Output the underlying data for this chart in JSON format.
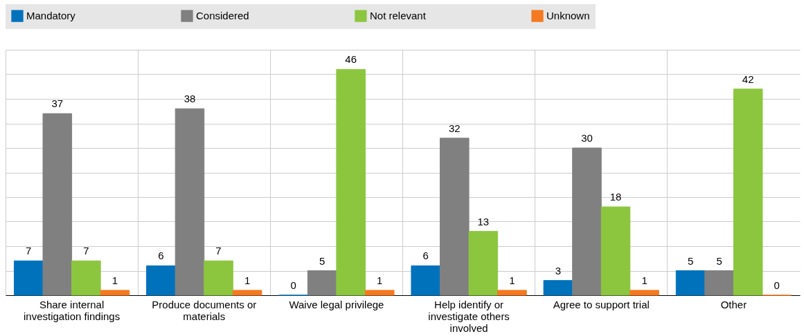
{
  "chart_data": {
    "type": "bar",
    "categories": [
      "Share internal investigation findings",
      "Produce  documents or materials",
      "Waive legal privilege",
      "Help identify or investigate others involved",
      "Agree to support trial",
      "Other"
    ],
    "series": [
      {
        "name": "Mandatory",
        "color": "#0072bc",
        "values": [
          7,
          6,
          0,
          6,
          3,
          5
        ]
      },
      {
        "name": "Considered",
        "color": "#808080",
        "values": [
          37,
          38,
          5,
          32,
          30,
          5
        ]
      },
      {
        "name": "Not relevant",
        "color": "#8cc63f",
        "values": [
          7,
          7,
          46,
          13,
          18,
          42
        ]
      },
      {
        "name": "Unknown",
        "color": "#f47920",
        "values": [
          1,
          1,
          1,
          1,
          1,
          0
        ]
      }
    ],
    "ylim": [
      0,
      50
    ],
    "tick_labels": "x",
    "grid": true,
    "legend": "top",
    "data_labels": true
  }
}
